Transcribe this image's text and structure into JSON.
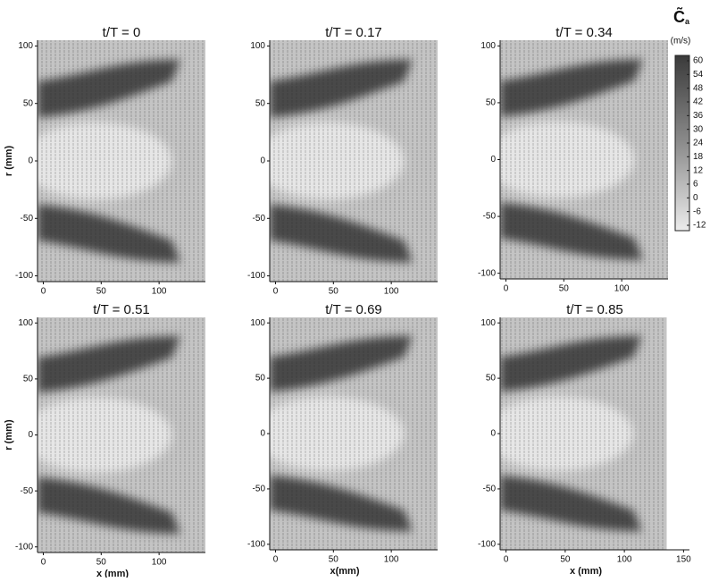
{
  "chart_data": [
    {
      "type": "contour",
      "title": "t/T = 0",
      "ylabel": "r (mm)",
      "xlim": [
        -5,
        140
      ],
      "ylim": [
        -105,
        105
      ],
      "xticks": [
        0,
        50,
        100
      ],
      "yticks": [
        -100,
        -50,
        0,
        50,
        100
      ]
    },
    {
      "type": "contour",
      "title": "t/T = 0.17",
      "xlim": [
        -5,
        140
      ],
      "ylim": [
        -105,
        105
      ],
      "xticks": [
        0,
        50,
        100
      ],
      "yticks": [
        -100,
        -50,
        0,
        50,
        100
      ]
    },
    {
      "type": "contour",
      "title": "t/T = 0.34",
      "xlim": [
        -5,
        140
      ],
      "ylim": [
        -105,
        105
      ],
      "xticks": [
        0,
        50,
        100
      ],
      "yticks": [
        -100,
        -50,
        0,
        50,
        100
      ]
    },
    {
      "type": "contour",
      "title": "t/T = 0.51",
      "xlabel": "x (mm)",
      "ylabel": "r (mm)",
      "xlim": [
        -5,
        140
      ],
      "ylim": [
        -105,
        105
      ],
      "xticks": [
        0,
        50,
        100
      ],
      "yticks": [
        -100,
        -50,
        0,
        50,
        100
      ]
    },
    {
      "type": "contour",
      "title": "t/T = 0.69",
      "xlabel": "x(mm)",
      "xlim": [
        -5,
        140
      ],
      "ylim": [
        -105,
        105
      ],
      "xticks": [
        0,
        50,
        100
      ],
      "yticks": [
        -100,
        -50,
        0,
        50,
        100
      ]
    },
    {
      "type": "contour",
      "title": "t/T = 0.85",
      "xlabel": "x (mm)",
      "xlim": [
        -5,
        155
      ],
      "ylim": [
        -105,
        105
      ],
      "xticks": [
        0,
        50,
        100,
        150
      ],
      "yticks": [
        -100,
        -50,
        0,
        50,
        100
      ]
    }
  ],
  "colorbar": {
    "title": "C̃",
    "subscript": "a",
    "unit": "(m/s)",
    "ticks": [
      60,
      54,
      48,
      42,
      36,
      30,
      24,
      18,
      12,
      6,
      0,
      -6,
      -12
    ]
  }
}
